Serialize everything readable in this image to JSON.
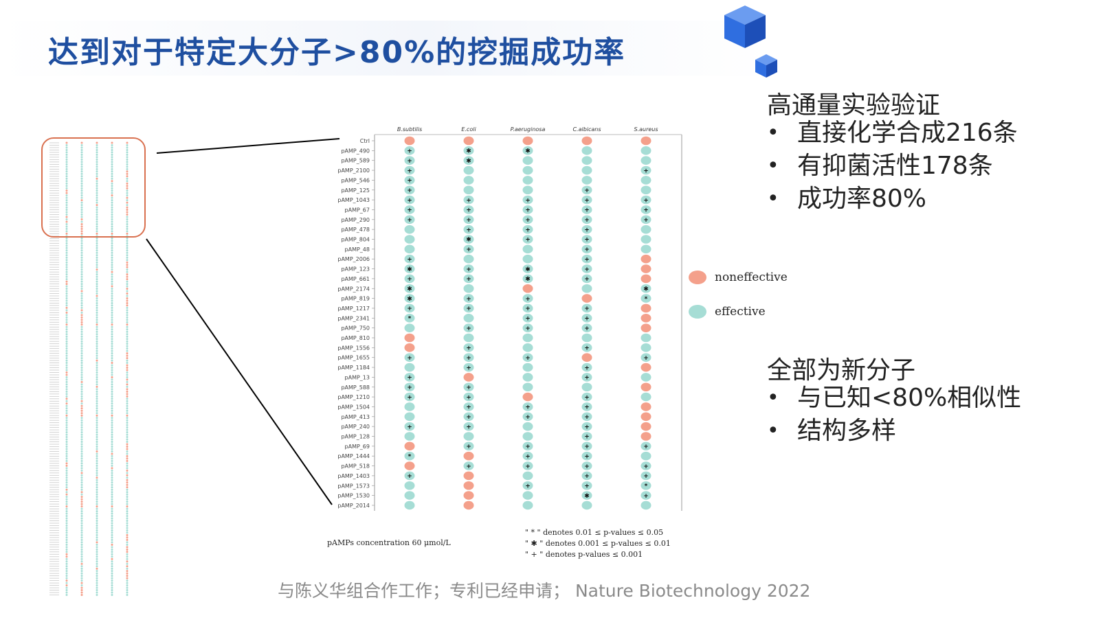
{
  "slide": {
    "title": "达到对于特定大分子>80%的挖掘成功率",
    "footer": "与陈义华组合作工作；专利已经申请； Nature Biotechnology 2022"
  },
  "panels": {
    "validation": {
      "title": "高通量实验验证",
      "bullets": [
        "直接化学合成216条",
        "有抑菌活性178条",
        "成功率80%"
      ]
    },
    "novelty": {
      "title": "全部为新分子",
      "bullets": [
        "与已知<80%相似性",
        "结构多样"
      ]
    }
  },
  "colors": {
    "noneffective": "#f4a08b",
    "effective": "#a6ddd5",
    "title": "#1f4fa0",
    "highlight_box": "#d9704f",
    "cube": "#2f6ee0"
  },
  "chart_data": {
    "type": "dot-matrix",
    "categories": [
      "B.subtilis",
      "E.coli",
      "P.aeruginosa",
      "C.albicans",
      "S.aureus"
    ],
    "rows": [
      "Ctrl",
      "pAMP_490",
      "pAMP_589",
      "pAMP_2100",
      "pAMP_546",
      "pAMP_125",
      "pAMP_1043",
      "pAMP_67",
      "pAMP_290",
      "pAMP_478",
      "pAMP_804",
      "pAMP_48",
      "pAMP_2006",
      "pAMP_123",
      "pAMP_661",
      "pAMP_2174",
      "pAMP_819",
      "pAMP_1217",
      "pAMP_2341",
      "pAMP_750",
      "pAMP_810",
      "pAMP_1556",
      "pAMP_1655",
      "pAMP_1184",
      "pAMP_13",
      "pAMP_588",
      "pAMP_1210",
      "pAMP_1504",
      "pAMP_413",
      "pAMP_240",
      "pAMP_128",
      "pAMP_69",
      "pAMP_1444",
      "pAMP_518",
      "pAMP_1403",
      "pAMP_1573",
      "pAMP_1530",
      "pAMP_2014"
    ],
    "marker_symbols": [
      "*",
      "✱",
      "+"
    ],
    "marker_key": [
      "",
      "",
      "",
      "",
      "",
      "",
      "0",
      "0",
      "0",
      "0",
      "0",
      "0",
      "0",
      "0",
      "0",
      "0",
      "0",
      "0",
      "0",
      "0",
      "0",
      "0",
      "0",
      "0",
      "0",
      "0",
      "0",
      "0",
      "0",
      "0",
      "0",
      "0",
      "0",
      "0",
      "0",
      "0",
      "0",
      "0",
      "0"
    ],
    "status": [
      [
        "N",
        "N",
        "N",
        "N",
        "N"
      ],
      [
        "E",
        "E",
        "E",
        "E",
        "E"
      ],
      [
        "E",
        "E",
        "E",
        "E",
        "E"
      ],
      [
        "E",
        "E",
        "E",
        "E",
        "E"
      ],
      [
        "E",
        "E",
        "E",
        "E",
        "E"
      ],
      [
        "E",
        "E",
        "E",
        "E",
        "E"
      ],
      [
        "E",
        "E",
        "E",
        "E",
        "E"
      ],
      [
        "E",
        "E",
        "E",
        "E",
        "E"
      ],
      [
        "E",
        "E",
        "E",
        "E",
        "E"
      ],
      [
        "E",
        "E",
        "E",
        "E",
        "E"
      ],
      [
        "E",
        "E",
        "E",
        "E",
        "E"
      ],
      [
        "E",
        "E",
        "E",
        "E",
        "E"
      ],
      [
        "E",
        "E",
        "E",
        "E",
        "N"
      ],
      [
        "E",
        "E",
        "E",
        "E",
        "N"
      ],
      [
        "E",
        "E",
        "E",
        "E",
        "N"
      ],
      [
        "E",
        "E",
        "N",
        "E",
        "E"
      ],
      [
        "E",
        "E",
        "E",
        "N",
        "E"
      ],
      [
        "E",
        "E",
        "E",
        "E",
        "N"
      ],
      [
        "E",
        "E",
        "E",
        "E",
        "N"
      ],
      [
        "E",
        "E",
        "E",
        "E",
        "N"
      ],
      [
        "N",
        "E",
        "E",
        "E",
        "E"
      ],
      [
        "N",
        "E",
        "E",
        "E",
        "E"
      ],
      [
        "E",
        "E",
        "E",
        "N",
        "E"
      ],
      [
        "E",
        "E",
        "E",
        "E",
        "N"
      ],
      [
        "E",
        "N",
        "E",
        "E",
        "E"
      ],
      [
        "E",
        "E",
        "E",
        "E",
        "N"
      ],
      [
        "E",
        "E",
        "N",
        "E",
        "E"
      ],
      [
        "E",
        "E",
        "E",
        "E",
        "N"
      ],
      [
        "E",
        "E",
        "E",
        "E",
        "N"
      ],
      [
        "E",
        "E",
        "E",
        "E",
        "N"
      ],
      [
        "E",
        "E",
        "E",
        "E",
        "N"
      ],
      [
        "N",
        "E",
        "E",
        "E",
        "E"
      ],
      [
        "E",
        "N",
        "E",
        "E",
        "E"
      ],
      [
        "N",
        "E",
        "E",
        "E",
        "E"
      ],
      [
        "E",
        "N",
        "E",
        "E",
        "E"
      ],
      [
        "E",
        "N",
        "E",
        "E",
        "E"
      ],
      [
        "E",
        "N",
        "E",
        "E",
        "E"
      ],
      [
        "E",
        "N",
        "E",
        "E",
        "E"
      ]
    ],
    "marks": [
      [
        "",
        "",
        "",
        "",
        ""
      ],
      [
        "+",
        "✱",
        "✱",
        "",
        ""
      ],
      [
        "+",
        "✱",
        "",
        "",
        ""
      ],
      [
        "+",
        "",
        "",
        "",
        "+"
      ],
      [
        "+",
        "",
        "",
        "",
        ""
      ],
      [
        "+",
        "",
        "",
        "+",
        ""
      ],
      [
        "+",
        "+",
        "+",
        "+",
        "+"
      ],
      [
        "+",
        "+",
        "+",
        "+",
        "+"
      ],
      [
        "+",
        "+",
        "+",
        "+",
        "+"
      ],
      [
        "",
        "+",
        "+",
        "+",
        ""
      ],
      [
        "",
        "✱",
        "+",
        "+",
        ""
      ],
      [
        "",
        "+",
        "",
        "+",
        ""
      ],
      [
        "+",
        "",
        "",
        "+",
        ""
      ],
      [
        "✱",
        "+",
        "✱",
        "+",
        ""
      ],
      [
        "+",
        "+",
        "✱",
        "+",
        ""
      ],
      [
        "✱",
        "",
        "",
        "",
        "✱"
      ],
      [
        "✱",
        "+",
        "+",
        "",
        "*"
      ],
      [
        "+",
        "+",
        "+",
        "+",
        ""
      ],
      [
        "*",
        "",
        "+",
        "+",
        ""
      ],
      [
        "",
        "+",
        "+",
        "+",
        ""
      ],
      [
        "",
        "",
        "",
        "",
        ""
      ],
      [
        "",
        "+",
        "",
        "+",
        ""
      ],
      [
        "+",
        "+",
        "+",
        "",
        "+"
      ],
      [
        "",
        "+",
        "",
        "+",
        ""
      ],
      [
        "+",
        "",
        "",
        "+",
        ""
      ],
      [
        "+",
        "+",
        "",
        "",
        ""
      ],
      [
        "+",
        "+",
        "",
        "+",
        ""
      ],
      [
        "",
        "+",
        "+",
        "+",
        ""
      ],
      [
        "",
        "+",
        "+",
        "+",
        ""
      ],
      [
        "+",
        "+",
        "",
        "+",
        ""
      ],
      [
        "",
        "",
        "",
        "+",
        ""
      ],
      [
        "",
        "+",
        "+",
        "+",
        "+"
      ],
      [
        "*",
        "",
        "+",
        "+",
        ""
      ],
      [
        "",
        "+",
        "+",
        "+",
        "+"
      ],
      [
        "+",
        "",
        "",
        "+",
        "+"
      ],
      [
        "",
        "",
        "+",
        "+",
        "*"
      ],
      [
        "",
        "",
        "",
        "✱",
        "+"
      ],
      [
        "",
        "",
        "",
        "",
        ""
      ]
    ],
    "legend": [
      "noneffective",
      "effective"
    ],
    "legend_position": "right",
    "annotations": [
      "\" * \" denotes 0.01 ≤ p-values ≤ 0.05",
      "\" ✱ \" denotes 0.001 ≤ p-values ≤ 0.01",
      "\" + \" denotes p-values ≤ 0.001"
    ],
    "concentration_label": "pAMPs concentration 60 μmol/L"
  }
}
